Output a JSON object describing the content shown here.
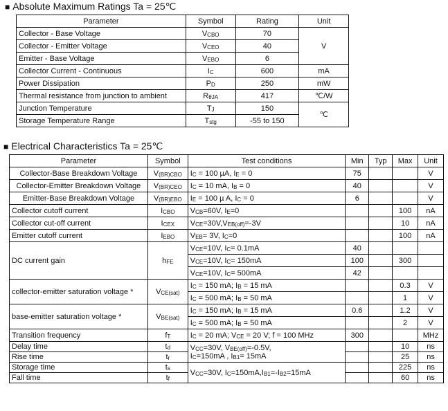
{
  "abs": {
    "heading": "Absolute Maximum Ratings Ta = 25℃",
    "headers": [
      "Parameter",
      "Symbol",
      "Rating",
      "Unit"
    ],
    "groups": [
      {
        "unit": "V",
        "rows": [
          {
            "param": "Collector - Base Voltage",
            "sym": {
              "m": "V",
              "s": "CBO"
            },
            "rating": "70"
          },
          {
            "param": "Collector - Emitter Voltage",
            "sym": {
              "m": "V",
              "s": "CEO"
            },
            "rating": "40"
          },
          {
            "param": "Emitter - Base Voltage",
            "sym": {
              "m": "V",
              "s": "EBO"
            },
            "rating": "6"
          }
        ]
      },
      {
        "unit": "mA",
        "rows": [
          {
            "param": "Collector Current  - Continuous",
            "sym": {
              "m": "I",
              "s": "C"
            },
            "rating": "600"
          }
        ]
      },
      {
        "unit": "mW",
        "rows": [
          {
            "param": "Power Dissipation",
            "sym": {
              "m": "P",
              "s": "D"
            },
            "rating": "250"
          }
        ]
      },
      {
        "unit": "℃/W",
        "rows": [
          {
            "param": "Thermal resistance from junction to ambient",
            "sym": {
              "m": "R",
              "s": "θJA"
            },
            "rating": "417"
          }
        ]
      },
      {
        "unit": "℃",
        "rows": [
          {
            "param": "Junction Temperature",
            "sym": {
              "m": "T",
              "s": "J"
            },
            "rating": "150"
          },
          {
            "param": "Storage Temperature Range",
            "sym": {
              "m": "T",
              "s": "stg"
            },
            "rating": "-55 to 150"
          }
        ]
      }
    ]
  },
  "elec": {
    "heading": "Electrical Characteristics Ta = 25℃",
    "headers": [
      "Parameter",
      "Symbol",
      "Test   conditions",
      "Min",
      "Typ",
      "Max",
      "Unit"
    ],
    "rows": [
      {
        "param": "Collector-Base Breakdown Voltage",
        "center": true,
        "sym": [
          "V",
          "(BR)CBO"
        ],
        "subs": [
          {
            "cond": [
              "I",
              "C",
              " = 100 µA, I",
              "E",
              " = 0"
            ],
            "min": "75",
            "typ": "",
            "max": "",
            "unit": "V"
          }
        ]
      },
      {
        "param": "Collector-Emitter Breakdown Voltage",
        "center": true,
        "sym": [
          "V",
          "(BR)CEO"
        ],
        "subs": [
          {
            "cond": [
              "I",
              "C",
              " = 10 mA, I",
              "B",
              " = 0"
            ],
            "min": "40",
            "typ": "",
            "max": "",
            "unit": "V"
          }
        ]
      },
      {
        "param": "Emitter-Base Breakdown Voltage",
        "center": true,
        "sym": [
          "V",
          "(BR)EBO"
        ],
        "subs": [
          {
            "cond": [
              "I",
              "E",
              " = 100 µ A, I",
              "C",
              " = 0"
            ],
            "min": "6",
            "typ": "",
            "max": "",
            "unit": "V"
          }
        ]
      },
      {
        "param": "Collector cutoff current",
        "sym": [
          "I",
          "CBO"
        ],
        "subs": [
          {
            "cond": [
              "V",
              "CB",
              "=60V, I",
              "E",
              "=0"
            ],
            "min": "",
            "typ": "",
            "max": "100",
            "unit": "nA"
          }
        ]
      },
      {
        "param": "Collector cut-off current",
        "sym": [
          "I",
          "CEX"
        ],
        "subs": [
          {
            "cond": [
              "V",
              "CE",
              "=30V,V",
              "EB(off)",
              "=-3V"
            ],
            "min": "",
            "typ": "",
            "max": "10",
            "unit": "nA"
          }
        ]
      },
      {
        "param": "Emitter cutoff current",
        "sym": [
          "I",
          "EBO"
        ],
        "subs": [
          {
            "cond": [
              "V",
              "EB",
              "= 3V, I",
              "C",
              "=0"
            ],
            "min": "",
            "typ": "",
            "max": "100",
            "unit": "nA"
          }
        ]
      },
      {
        "param": "DC current gain",
        "sym": [
          "h",
          "FE"
        ],
        "subs": [
          {
            "cond": [
              "V",
              "CE",
              "=10V, I",
              "C",
              "= 0.1mA"
            ],
            "min": "40",
            "typ": "",
            "max": "",
            "unit": ""
          },
          {
            "cond": [
              "V",
              "CE",
              "=10V, I",
              "C",
              "= 150mA"
            ],
            "min": "100",
            "typ": "",
            "max": "300",
            "unit": ""
          },
          {
            "cond": [
              "V",
              "CE",
              "=10V, I",
              "C",
              "= 500mA"
            ],
            "min": "42",
            "typ": "",
            "max": "",
            "unit": ""
          }
        ]
      },
      {
        "param": "collector-emitter saturation voltage  *",
        "sym": [
          "V",
          "CE(sat)"
        ],
        "subs": [
          {
            "cond": [
              "I",
              "C",
              " = 150 mA; I",
              "B",
              " = 15 mA"
            ],
            "min": "",
            "typ": "",
            "max": "0.3",
            "unit": "V"
          },
          {
            "cond": [
              "I",
              "C",
              " = 500 mA; I",
              "B",
              " = 50 mA"
            ],
            "min": "",
            "typ": "",
            "max": "1",
            "unit": "V"
          }
        ]
      },
      {
        "param": "base-emitter saturation voltage  *",
        "sym": [
          "V",
          "BE(sat)"
        ],
        "subs": [
          {
            "cond": [
              "I",
              "C",
              " = 150 mA; I",
              "B",
              " = 15 mA"
            ],
            "min": "0.6",
            "typ": "",
            "max": "1.2",
            "unit": "V"
          },
          {
            "cond": [
              "I",
              "C",
              " = 500 mA; I",
              "B",
              " = 50 mA"
            ],
            "min": "",
            "typ": "",
            "max": "2",
            "unit": "V"
          }
        ]
      },
      {
        "param": "Transition frequency",
        "sym": [
          "f",
          "T"
        ],
        "subs": [
          {
            "cond": [
              "I",
              "C",
              " = 20 mA; V",
              "CE",
              " = 20 V; f = 100 MHz"
            ],
            "min": "300",
            "typ": "",
            "max": "",
            "unit": "MHz"
          }
        ]
      }
    ],
    "switching": [
      {
        "cond": [
          [
            "V",
            "CC",
            "=30V, V",
            "BE(off)",
            "=-0.5V,"
          ],
          [
            "I",
            "C",
            "=150mA , I",
            "B1",
            "= 15mA"
          ]
        ],
        "items": [
          {
            "param": "Delay time",
            "sym": [
              "t",
              "d"
            ],
            "max": "10",
            "unit": "ns"
          },
          {
            "param": "Rise time",
            "sym": [
              "t",
              "r"
            ],
            "max": "25",
            "unit": "ns"
          }
        ]
      },
      {
        "cond": [
          [
            "V",
            "CC",
            "=30V, I",
            "C",
            "=150mA,I",
            "B1",
            "=-I",
            "B2",
            "=15mA"
          ]
        ],
        "items": [
          {
            "param": "Storage time",
            "sym": [
              "t",
              "s"
            ],
            "max": "225",
            "unit": "ns"
          },
          {
            "param": "Fall time",
            "sym": [
              "t",
              "f"
            ],
            "max": "60",
            "unit": "ns"
          }
        ]
      }
    ]
  }
}
